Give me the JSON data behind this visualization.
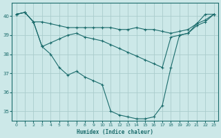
{
  "title": "",
  "xlabel": "Humidex (Indice chaleur)",
  "bg_color": "#cce8e8",
  "grid_color": "#aacccc",
  "line_color": "#1a6b6b",
  "xlim": [
    -0.5,
    23.5
  ],
  "ylim": [
    34.5,
    40.7
  ],
  "yticks": [
    35,
    36,
    37,
    38,
    39,
    40
  ],
  "xticks": [
    0,
    1,
    2,
    3,
    4,
    5,
    6,
    7,
    8,
    9,
    10,
    11,
    12,
    13,
    14,
    15,
    16,
    17,
    18,
    19,
    20,
    21,
    22,
    23
  ],
  "lines": [
    {
      "x": [
        0,
        1,
        2,
        3,
        4,
        5,
        6,
        7,
        8,
        9,
        10,
        11,
        12,
        13,
        14,
        15,
        16,
        17,
        18,
        19,
        20,
        21,
        22,
        23
      ],
      "y": [
        40.1,
        40.2,
        39.7,
        39.7,
        39.6,
        39.5,
        39.4,
        39.4,
        39.4,
        39.4,
        39.4,
        39.4,
        39.3,
        39.3,
        39.4,
        39.3,
        39.3,
        39.2,
        39.1,
        39.2,
        39.3,
        39.6,
        39.8,
        40.1
      ]
    },
    {
      "x": [
        0,
        1,
        2,
        3,
        4,
        5,
        6,
        7,
        8,
        9,
        10,
        11,
        12,
        13,
        14,
        15,
        16,
        17,
        18,
        19,
        20,
        21,
        22,
        23
      ],
      "y": [
        40.1,
        40.2,
        39.7,
        38.4,
        38.6,
        38.8,
        39.0,
        39.1,
        38.9,
        38.8,
        38.7,
        38.5,
        38.3,
        38.1,
        37.9,
        37.7,
        37.5,
        37.3,
        38.9,
        39.0,
        39.1,
        39.5,
        39.7,
        40.1
      ]
    },
    {
      "x": [
        0,
        1,
        2,
        3,
        4,
        5,
        6,
        7,
        8,
        9,
        10,
        11,
        12,
        13,
        14,
        15,
        16,
        17,
        18,
        19,
        20,
        21,
        22,
        23
      ],
      "y": [
        40.1,
        40.2,
        39.7,
        38.4,
        38.0,
        37.3,
        36.9,
        37.1,
        36.8,
        36.6,
        36.4,
        35.0,
        34.8,
        34.7,
        34.6,
        34.6,
        34.7,
        35.3,
        37.3,
        39.0,
        39.1,
        39.6,
        40.1,
        40.1
      ]
    }
  ]
}
